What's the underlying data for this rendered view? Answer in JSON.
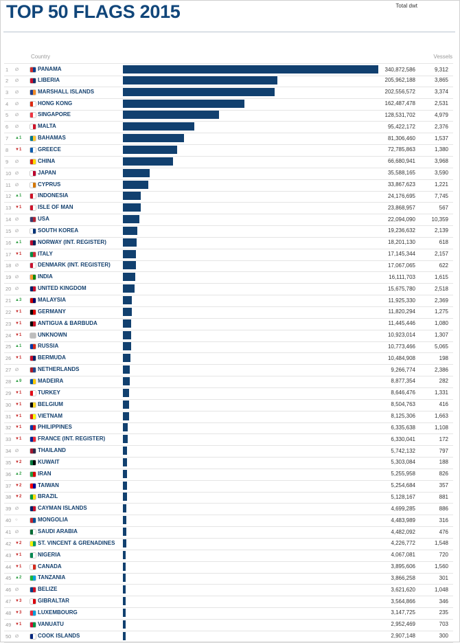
{
  "title": "TOP 50 FLAGS 2015",
  "columns": {
    "country": "Country",
    "dwt": "Total dwt",
    "vessels": "Vessels"
  },
  "colors": {
    "bar": "#11406f",
    "title": "#11467a",
    "up": "#2f9e44",
    "down": "#c62828",
    "same": "#a8a8a8"
  },
  "chart_data": {
    "type": "bar",
    "title": "TOP 50 FLAGS 2015",
    "xlabel": "Total dwt",
    "ylabel": "Country",
    "series": [
      {
        "name": "Total dwt"
      }
    ],
    "rows": [
      {
        "rank": "1",
        "change": "same",
        "change_value": "",
        "country": "PANAMA",
        "dwt_label": "340,872,586",
        "dwt": 340872586,
        "vessels": "9,312",
        "flag": [
          "#cf2e2e",
          "#0b3e8c"
        ]
      },
      {
        "rank": "2",
        "change": "same",
        "change_value": "",
        "country": "LIBERIA",
        "dwt_label": "205,962,188",
        "dwt": 205962188,
        "vessels": "3,865",
        "flag": [
          "#c8102e",
          "#13316b"
        ]
      },
      {
        "rank": "3",
        "change": "same",
        "change_value": "",
        "country": "MARSHALL ISLANDS",
        "dwt_label": "202,556,572",
        "dwt": 202556572,
        "vessels": "3,374",
        "flag": [
          "#1f3a8a",
          "#f28c28"
        ]
      },
      {
        "rank": "4",
        "change": "same",
        "change_value": "",
        "country": "HONG KONG",
        "dwt_label": "162,487,478",
        "dwt": 162487478,
        "vessels": "2,531",
        "flag": [
          "#de2910",
          "#ffffff"
        ]
      },
      {
        "rank": "5",
        "change": "same",
        "change_value": "",
        "country": "SINGAPORE",
        "dwt_label": "128,531,702",
        "dwt": 128531702,
        "vessels": "4,979",
        "flag": [
          "#ef3340",
          "#ffffff"
        ]
      },
      {
        "rank": "6",
        "change": "same",
        "change_value": "",
        "country": "MALTA",
        "dwt_label": "95,422,172",
        "dwt": 95422172,
        "vessels": "2,376",
        "flag": [
          "#ffffff",
          "#cf142b"
        ]
      },
      {
        "rank": "7",
        "change": "up",
        "change_value": "1",
        "country": "BAHAMAS",
        "dwt_label": "81,306,460",
        "dwt": 81306460,
        "vessels": "1,537",
        "flag": [
          "#00778b",
          "#ffc72c"
        ]
      },
      {
        "rank": "8",
        "change": "down",
        "change_value": "1",
        "country": "GREECE",
        "dwt_label": "72,785,863",
        "dwt": 72785863,
        "vessels": "1,380",
        "flag": [
          "#0d5eaf",
          "#ffffff"
        ]
      },
      {
        "rank": "9",
        "change": "same",
        "change_value": "",
        "country": "CHINA",
        "dwt_label": "66,680,941",
        "dwt": 66680941,
        "vessels": "3,968",
        "flag": [
          "#de2910",
          "#ffde00"
        ]
      },
      {
        "rank": "10",
        "change": "same",
        "change_value": "",
        "country": "JAPAN",
        "dwt_label": "35,588,165",
        "dwt": 35588165,
        "vessels": "3,590",
        "flag": [
          "#ffffff",
          "#bc002d"
        ]
      },
      {
        "rank": "11",
        "change": "same",
        "change_value": "",
        "country": "CYPRUS",
        "dwt_label": "33,867,623",
        "dwt": 33867623,
        "vessels": "1,221",
        "flag": [
          "#ffffff",
          "#d57800"
        ]
      },
      {
        "rank": "12",
        "change": "up",
        "change_value": "1",
        "country": "INDONESIA",
        "dwt_label": "24,176,695",
        "dwt": 24176695,
        "vessels": "7,745",
        "flag": [
          "#ce1126",
          "#ffffff"
        ]
      },
      {
        "rank": "13",
        "change": "down",
        "change_value": "1",
        "country": "ISLE OF MAN",
        "dwt_label": "23,868,957",
        "dwt": 23868957,
        "vessels": "567",
        "flag": [
          "#cf142b",
          "#ffffff"
        ]
      },
      {
        "rank": "14",
        "change": "same",
        "change_value": "",
        "country": "USA",
        "dwt_label": "22,094,090",
        "dwt": 22094090,
        "vessels": "10,359",
        "flag": [
          "#3c3b6e",
          "#b22234"
        ]
      },
      {
        "rank": "15",
        "change": "same",
        "change_value": "",
        "country": "SOUTH KOREA",
        "dwt_label": "19,236,632",
        "dwt": 19236632,
        "vessels": "2,139",
        "flag": [
          "#ffffff",
          "#003478"
        ]
      },
      {
        "rank": "16",
        "change": "up",
        "change_value": "1",
        "country": "NORWAY (INT. REGISTER)",
        "dwt_label": "18,201,130",
        "dwt": 18201130,
        "vessels": "618",
        "flag": [
          "#ba0c2f",
          "#00205b"
        ]
      },
      {
        "rank": "17",
        "change": "down",
        "change_value": "1",
        "country": "ITALY",
        "dwt_label": "17,145,344",
        "dwt": 17145344,
        "vessels": "2,157",
        "flag": [
          "#009246",
          "#ce2b37"
        ]
      },
      {
        "rank": "18",
        "change": "same",
        "change_value": "",
        "country": "DENMARK (INT. REGISTER)",
        "dwt_label": "17,067,065",
        "dwt": 17067065,
        "vessels": "622",
        "flag": [
          "#c8102e",
          "#ffffff"
        ]
      },
      {
        "rank": "19",
        "change": "same",
        "change_value": "",
        "country": "INDIA",
        "dwt_label": "16,111,703",
        "dwt": 16111703,
        "vessels": "1,615",
        "flag": [
          "#ff9933",
          "#138808"
        ]
      },
      {
        "rank": "20",
        "change": "same",
        "change_value": "",
        "country": "UNITED KINGDOM",
        "dwt_label": "15,675,780",
        "dwt": 15675780,
        "vessels": "2,518",
        "flag": [
          "#012169",
          "#c8102e"
        ]
      },
      {
        "rank": "21",
        "change": "up",
        "change_value": "3",
        "country": "MALAYSIA",
        "dwt_label": "11,925,330",
        "dwt": 11925330,
        "vessels": "2,369",
        "flag": [
          "#cc0001",
          "#010066"
        ]
      },
      {
        "rank": "22",
        "change": "down",
        "change_value": "1",
        "country": "GERMANY",
        "dwt_label": "11,820,294",
        "dwt": 11820294,
        "vessels": "1,275",
        "flag": [
          "#000000",
          "#dd0000"
        ]
      },
      {
        "rank": "23",
        "change": "down",
        "change_value": "1",
        "country": "ANTIGUA & BARBUDA",
        "dwt_label": "11,445,446",
        "dwt": 11445446,
        "vessels": "1,080",
        "flag": [
          "#000000",
          "#ce1126"
        ]
      },
      {
        "rank": "24",
        "change": "down",
        "change_value": "1",
        "country": "UNKNOWN",
        "dwt_label": "10,923,014",
        "dwt": 10923014,
        "vessels": "1,307",
        "flag": [
          "#bdbdbd",
          "#bdbdbd"
        ]
      },
      {
        "rank": "25",
        "change": "up",
        "change_value": "1",
        "country": "RUSSIA",
        "dwt_label": "10,773,466",
        "dwt": 10773466,
        "vessels": "5,065",
        "flag": [
          "#0039a6",
          "#d52b1e"
        ]
      },
      {
        "rank": "26",
        "change": "down",
        "change_value": "1",
        "country": "BERMUDA",
        "dwt_label": "10,484,908",
        "dwt": 10484908,
        "vessels": "198",
        "flag": [
          "#c8102e",
          "#012169"
        ]
      },
      {
        "rank": "27",
        "change": "same",
        "change_value": "",
        "country": "NETHERLANDS",
        "dwt_label": "9,266,774",
        "dwt": 9266774,
        "vessels": "2,386",
        "flag": [
          "#ae1c28",
          "#21468b"
        ]
      },
      {
        "rank": "28",
        "change": "up",
        "change_value": "9",
        "country": "MADEIRA",
        "dwt_label": "8,877,354",
        "dwt": 8877354,
        "vessels": "282",
        "flag": [
          "#0051a3",
          "#ffcc00"
        ]
      },
      {
        "rank": "29",
        "change": "down",
        "change_value": "1",
        "country": "TURKEY",
        "dwt_label": "8,646,476",
        "dwt": 8646476,
        "vessels": "1,331",
        "flag": [
          "#e30a17",
          "#ffffff"
        ]
      },
      {
        "rank": "30",
        "change": "down",
        "change_value": "1",
        "country": "BELGIUM",
        "dwt_label": "8,504,763",
        "dwt": 8504763,
        "vessels": "416",
        "flag": [
          "#000000",
          "#fdda24"
        ]
      },
      {
        "rank": "31",
        "change": "down",
        "change_value": "1",
        "country": "VIETNAM",
        "dwt_label": "8,125,306",
        "dwt": 8125306,
        "vessels": "1,663",
        "flag": [
          "#da251d",
          "#ffff00"
        ]
      },
      {
        "rank": "32",
        "change": "down",
        "change_value": "1",
        "country": "PHILIPPINES",
        "dwt_label": "6,335,638",
        "dwt": 6335638,
        "vessels": "1,108",
        "flag": [
          "#0038a8",
          "#ce1126"
        ]
      },
      {
        "rank": "33",
        "change": "down",
        "change_value": "1",
        "country": "FRANCE (INT. REGISTER)",
        "dwt_label": "6,330,041",
        "dwt": 6330041,
        "vessels": "172",
        "flag": [
          "#002395",
          "#ed2939"
        ]
      },
      {
        "rank": "34",
        "change": "same",
        "change_value": "",
        "country": "THAILAND",
        "dwt_label": "5,742,132",
        "dwt": 5742132,
        "vessels": "797",
        "flag": [
          "#a51931",
          "#2d2a4a"
        ]
      },
      {
        "rank": "35",
        "change": "down",
        "change_value": "2",
        "country": "KUWAIT",
        "dwt_label": "5,303,084",
        "dwt": 5303084,
        "vessels": "188",
        "flag": [
          "#007a3d",
          "#000000"
        ]
      },
      {
        "rank": "36",
        "change": "up",
        "change_value": "2",
        "country": "IRAN",
        "dwt_label": "5,255,958",
        "dwt": 5255958,
        "vessels": "826",
        "flag": [
          "#239f40",
          "#da0000"
        ]
      },
      {
        "rank": "37",
        "change": "down",
        "change_value": "2",
        "country": "TAIWAN",
        "dwt_label": "5,254,684",
        "dwt": 5254684,
        "vessels": "357",
        "flag": [
          "#fe0000",
          "#000095"
        ]
      },
      {
        "rank": "38",
        "change": "down",
        "change_value": "2",
        "country": "BRAZIL",
        "dwt_label": "5,128,167",
        "dwt": 5128167,
        "vessels": "881",
        "flag": [
          "#009c3b",
          "#ffdf00"
        ]
      },
      {
        "rank": "39",
        "change": "same",
        "change_value": "",
        "country": "CAYMAN ISLANDS",
        "dwt_label": "4,699,285",
        "dwt": 4699285,
        "vessels": "886",
        "flag": [
          "#012169",
          "#c8102e"
        ]
      },
      {
        "rank": "40",
        "change": "new",
        "change_value": "",
        "country": "MONGOLIA",
        "dwt_label": "4,483,989",
        "dwt": 4483989,
        "vessels": "316",
        "flag": [
          "#c4272f",
          "#015197"
        ]
      },
      {
        "rank": "41",
        "change": "same",
        "change_value": "",
        "country": "SAUDI ARABIA",
        "dwt_label": "4,482,092",
        "dwt": 4482092,
        "vessels": "476",
        "flag": [
          "#006c35",
          "#ffffff"
        ]
      },
      {
        "rank": "42",
        "change": "down",
        "change_value": "2",
        "country": "ST. VINCENT & GRENADINES",
        "dwt_label": "4,226,772",
        "dwt": 4226772,
        "vessels": "1,548",
        "flag": [
          "#f4f100",
          "#009e60"
        ]
      },
      {
        "rank": "43",
        "change": "down",
        "change_value": "1",
        "country": "NIGERIA",
        "dwt_label": "4,067,081",
        "dwt": 4067081,
        "vessels": "720",
        "flag": [
          "#008751",
          "#ffffff"
        ]
      },
      {
        "rank": "44",
        "change": "down",
        "change_value": "1",
        "country": "CANADA",
        "dwt_label": "3,895,606",
        "dwt": 3895606,
        "vessels": "1,560",
        "flag": [
          "#ffffff",
          "#d52b1e"
        ]
      },
      {
        "rank": "45",
        "change": "up",
        "change_value": "2",
        "country": "TANZANIA",
        "dwt_label": "3,866,258",
        "dwt": 3866258,
        "vessels": "301",
        "flag": [
          "#1eb53a",
          "#00a3dd"
        ]
      },
      {
        "rank": "46",
        "change": "same",
        "change_value": "",
        "country": "BELIZE",
        "dwt_label": "3,621,620",
        "dwt": 3621620,
        "vessels": "1,048",
        "flag": [
          "#003f87",
          "#ce1126"
        ]
      },
      {
        "rank": "47",
        "change": "down",
        "change_value": "3",
        "country": "GIBRALTAR",
        "dwt_label": "3,564,866",
        "dwt": 3564866,
        "vessels": "346",
        "flag": [
          "#ffffff",
          "#da000c"
        ]
      },
      {
        "rank": "48",
        "change": "down",
        "change_value": "3",
        "country": "LUXEMBOURG",
        "dwt_label": "3,147,725",
        "dwt": 3147725,
        "vessels": "235",
        "flag": [
          "#ed2939",
          "#00a1de"
        ]
      },
      {
        "rank": "49",
        "change": "down",
        "change_value": "1",
        "country": "VANUATU",
        "dwt_label": "2,952,469",
        "dwt": 2952469,
        "vessels": "703",
        "flag": [
          "#d21034",
          "#009543"
        ]
      },
      {
        "rank": "50",
        "change": "same",
        "change_value": "",
        "country": "COOK ISLANDS",
        "dwt_label": "2,907,148",
        "dwt": 2907148,
        "vessels": "300",
        "flag": [
          "#00247d",
          "#ffffff"
        ]
      }
    ]
  }
}
